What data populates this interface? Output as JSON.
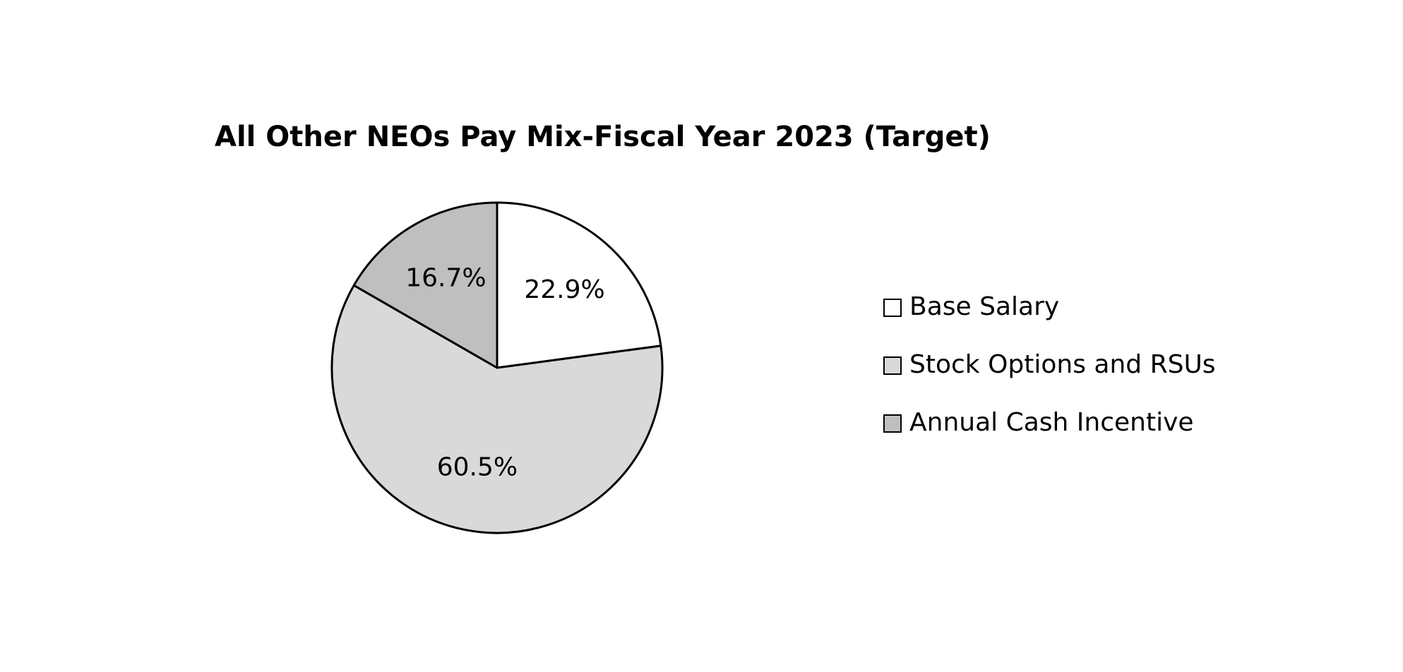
{
  "chart_data": {
    "type": "pie",
    "title": "All Other NEOs Pay Mix-Fiscal Year 2023 (Target)",
    "categories": [
      "Base Salary",
      "Stock Options and RSUs",
      "Annual Cash Incentive"
    ],
    "values": [
      22.9,
      60.5,
      16.7
    ],
    "value_labels": [
      "22.9%",
      "60.5%",
      "16.7%"
    ],
    "colors": [
      "#ffffff",
      "#d9d9d9",
      "#bfbfbf"
    ],
    "legend": "right"
  }
}
